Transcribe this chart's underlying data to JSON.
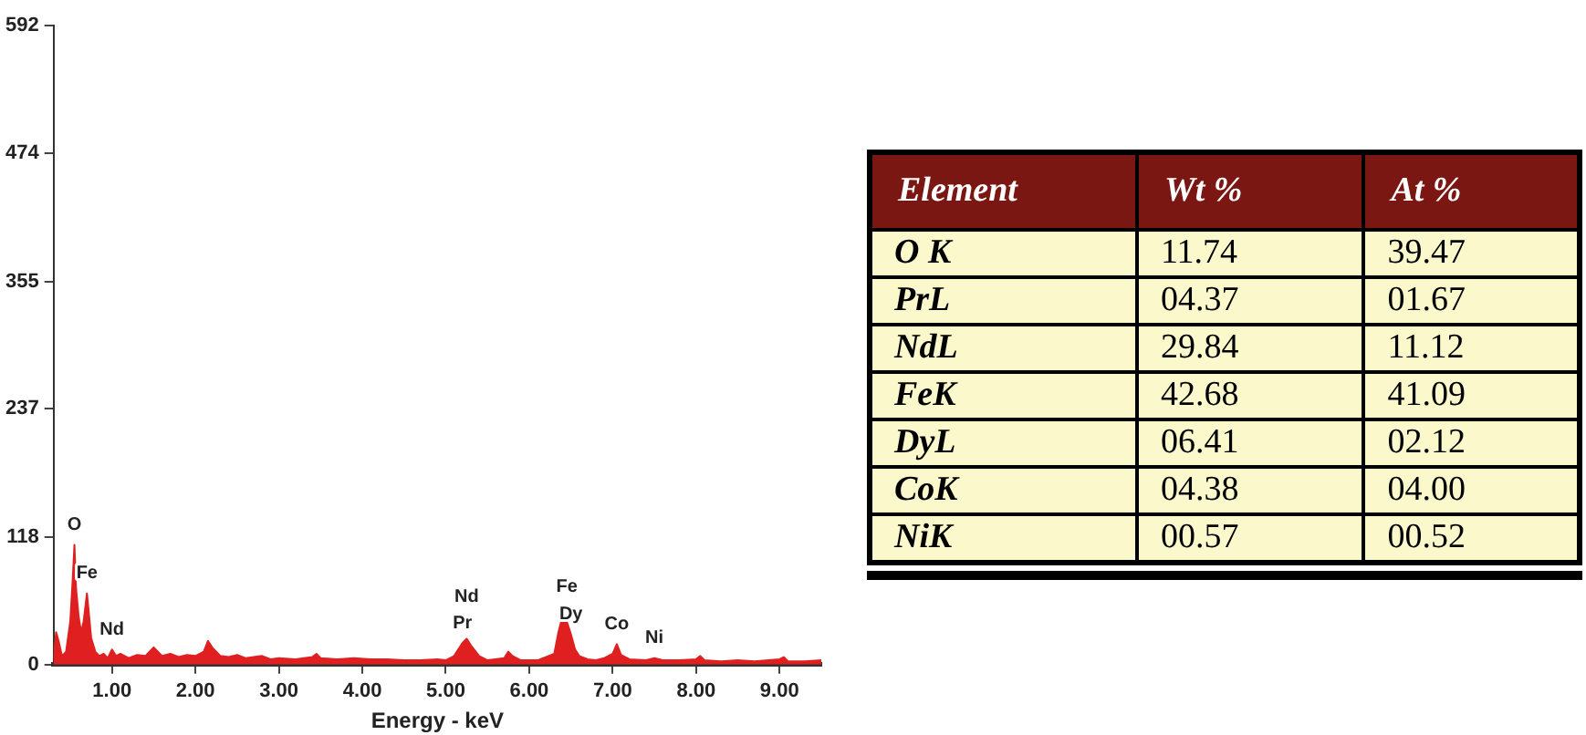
{
  "chart_data": [
    {
      "type": "area",
      "xlabel": "Energy - keV",
      "xlim": [
        0.3,
        9.5
      ],
      "ylim": [
        0,
        592
      ],
      "xticks": [
        {
          "value": 1,
          "label": "1.00"
        },
        {
          "value": 2,
          "label": "2.00"
        },
        {
          "value": 3,
          "label": "3.00"
        },
        {
          "value": 4,
          "label": "4.00"
        },
        {
          "value": 5,
          "label": "5.00"
        },
        {
          "value": 6,
          "label": "6.00"
        },
        {
          "value": 7,
          "label": "7.00"
        },
        {
          "value": 8,
          "label": "8.00"
        },
        {
          "value": 9,
          "label": "9.00"
        }
      ],
      "yticks": [
        0,
        118,
        237,
        355,
        474,
        592
      ],
      "grid": false,
      "series": [
        {
          "color": "#e02020",
          "x": [
            0.3,
            0.33,
            0.36,
            0.4,
            0.45,
            0.5,
            0.53,
            0.55,
            0.57,
            0.6,
            0.63,
            0.66,
            0.7,
            0.72,
            0.75,
            0.8,
            0.85,
            0.9,
            0.95,
            1.0,
            1.05,
            1.1,
            1.2,
            1.3,
            1.4,
            1.5,
            1.55,
            1.6,
            1.7,
            1.8,
            1.9,
            2.0,
            2.1,
            2.15,
            2.2,
            2.25,
            2.3,
            2.4,
            2.5,
            2.6,
            2.7,
            2.8,
            2.9,
            3.0,
            3.2,
            3.4,
            3.45,
            3.5,
            3.7,
            3.9,
            4.1,
            4.3,
            4.5,
            4.7,
            4.9,
            5.0,
            5.1,
            5.2,
            5.25,
            5.3,
            5.4,
            5.5,
            5.7,
            5.75,
            5.8,
            5.9,
            6.1,
            6.3,
            6.35,
            6.4,
            6.45,
            6.5,
            6.55,
            6.6,
            6.7,
            6.8,
            6.9,
            7.0,
            7.05,
            7.1,
            7.2,
            7.4,
            7.5,
            7.6,
            7.8,
            8.0,
            8.05,
            8.1,
            8.3,
            8.5,
            8.7,
            9.0,
            9.05,
            9.1,
            9.3,
            9.5
          ],
          "values": [
            5,
            30,
            22,
            8,
            12,
            40,
            80,
            111,
            70,
            45,
            30,
            40,
            66,
            50,
            25,
            12,
            8,
            10,
            6,
            14,
            8,
            10,
            6,
            9,
            8,
            16,
            12,
            8,
            10,
            7,
            9,
            8,
            12,
            22,
            16,
            12,
            8,
            7,
            9,
            6,
            7,
            8,
            5,
            6,
            5,
            7,
            10,
            6,
            5,
            6,
            5,
            5,
            4,
            4,
            5,
            4,
            8,
            20,
            24,
            18,
            8,
            4,
            6,
            12,
            8,
            4,
            4,
            10,
            30,
            45,
            40,
            28,
            14,
            8,
            5,
            4,
            6,
            10,
            19,
            9,
            5,
            4,
            6,
            4,
            4,
            5,
            8,
            4,
            3,
            4,
            3,
            5,
            7,
            3,
            3,
            4
          ]
        }
      ],
      "annotations": [
        {
          "text": "O",
          "x": 0.55,
          "y": 111
        },
        {
          "text": "Fe",
          "x": 0.7,
          "y": 66
        },
        {
          "text": "Nd",
          "x": 1.0,
          "y": 14
        },
        {
          "text": "Pr",
          "x": 5.2,
          "y": 20
        },
        {
          "text": "Nd",
          "x": 5.25,
          "y": 24
        },
        {
          "text": "Dy",
          "x": 6.5,
          "y": 28
        },
        {
          "text": "Fe",
          "x": 6.45,
          "y": 40
        },
        {
          "text": "Co",
          "x": 7.05,
          "y": 19
        },
        {
          "text": "Ni",
          "x": 7.5,
          "y": 6
        }
      ]
    },
    {
      "type": "heatmap",
      "ylabel": "Element",
      "categories": [
        "Wt %",
        "At %"
      ],
      "y_categories": [
        "O K",
        "PrL",
        "NdL",
        "FeK",
        "DyL",
        "CoK",
        "NiK"
      ],
      "cells": [
        [
          11.74,
          39.47
        ],
        [
          4.37,
          1.67
        ],
        [
          29.84,
          11.12
        ],
        [
          42.68,
          41.09
        ],
        [
          6.41,
          2.12
        ],
        [
          4.38,
          4.0
        ],
        [
          0.57,
          0.52
        ]
      ],
      "cell_labels": [
        [
          "11.74",
          "39.47"
        ],
        [
          "04.37",
          "01.67"
        ],
        [
          "29.84",
          "11.12"
        ],
        [
          "42.68",
          "41.09"
        ],
        [
          "06.41",
          "02.12"
        ],
        [
          "04.38",
          "04.00"
        ],
        [
          "00.57",
          "00.52"
        ]
      ]
    }
  ]
}
